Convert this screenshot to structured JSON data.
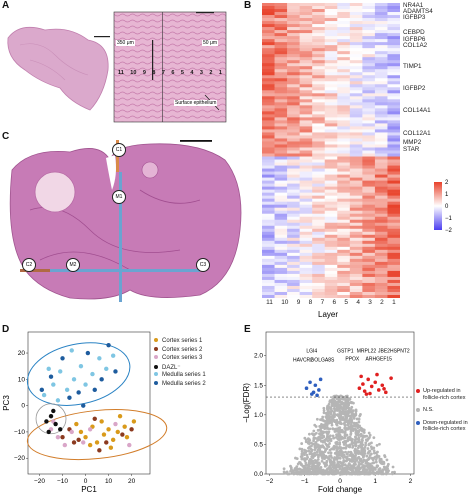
{
  "panels": {
    "a": "A",
    "b": "B",
    "c": "C",
    "d": "D",
    "e": "E"
  },
  "panel_a": {
    "scale_350": "350 μm",
    "scale_50": "50 μm",
    "layer_numbers": [
      "11",
      "10",
      "9",
      "8",
      "7",
      "6",
      "5",
      "4",
      "3",
      "2",
      "1"
    ],
    "surface_label": "Surface epithelium"
  },
  "panel_b": {
    "genes": [
      "NR4A1",
      "ADAMTS4",
      "IGFBP3",
      "CEBPD",
      "IGFBP6",
      "COL1A2",
      "TIMP1",
      "IGFBP2",
      "COL14A1",
      "COL12A1",
      "MMP2",
      "STAR"
    ],
    "x_ticks": [
      "11",
      "10",
      "9",
      "8",
      "7",
      "6",
      "5",
      "4",
      "3",
      "2",
      "1"
    ],
    "x_label": "Layer",
    "legend_ticks": [
      "2",
      "1",
      "0",
      "−1",
      "−2"
    ],
    "colors": {
      "high": "#e8412a",
      "mid": "#ffffff",
      "low": "#4b3df0"
    }
  },
  "panel_c": {
    "markers": [
      "C1",
      "M1",
      "M2",
      "C2",
      "C3"
    ]
  },
  "chart_data": [
    {
      "type": "scatter",
      "xlabel": "PC1",
      "ylabel": "PC3",
      "xlim": [
        -25,
        28
      ],
      "ylim": [
        -26,
        28
      ],
      "x_ticks": [
        "−20",
        "−10",
        "0",
        "10",
        "20"
      ],
      "y_ticks": [
        "20",
        "10",
        "0",
        "−10",
        "−20"
      ],
      "legend_placement": "right",
      "series": [
        {
          "name": "Cortex series 1",
          "color": "#d99a1a",
          "points": [
            [
              -2,
              -10
            ],
            [
              0,
              -12
            ],
            [
              3,
              -8
            ],
            [
              5,
              -14
            ],
            [
              8,
              -11
            ],
            [
              10,
              -9
            ],
            [
              12,
              -13
            ],
            [
              14,
              -10
            ],
            [
              17,
              -8
            ],
            [
              18,
              -12
            ],
            [
              21,
              -6
            ],
            [
              -4,
              -7
            ],
            [
              7,
              -6
            ],
            [
              2,
              -15
            ],
            [
              11,
              -16
            ],
            [
              15,
              -4
            ]
          ]
        },
        {
          "name": "Cortex series 2",
          "color": "#8b3a1f",
          "points": [
            [
              -10,
              -12
            ],
            [
              -7,
              -9
            ],
            [
              -5,
              -14
            ],
            [
              4,
              -5
            ],
            [
              9,
              -14
            ],
            [
              16,
              -11
            ],
            [
              20,
              -9
            ],
            [
              6,
              -17
            ],
            [
              -3,
              -13
            ]
          ]
        },
        {
          "name": "Cortex series 3",
          "color": "#d9a6c8",
          "points": [
            [
              -15,
              -9
            ],
            [
              -12,
              -12
            ],
            [
              -9,
              -15
            ],
            [
              -6,
              -10
            ],
            [
              -1,
              -14
            ],
            [
              2,
              -9
            ],
            [
              13,
              -7
            ],
            [
              19,
              -15
            ],
            [
              -14,
              -6
            ]
          ]
        },
        {
          "name": "DAZL⁻",
          "color": "#111111",
          "points": [
            [
              -17,
              -6
            ],
            [
              -15,
              -4
            ],
            [
              -13,
              -7
            ],
            [
              -16,
              -10
            ],
            [
              -14,
              -2
            ],
            [
              -11,
              -9
            ]
          ]
        },
        {
          "name": "Medulla series 1",
          "color": "#7fc6e3",
          "points": [
            [
              -18,
              4
            ],
            [
              -14,
              8
            ],
            [
              -11,
              13
            ],
            [
              -8,
              6
            ],
            [
              -5,
              10
            ],
            [
              -2,
              15
            ],
            [
              0,
              8
            ],
            [
              3,
              12
            ],
            [
              6,
              18
            ],
            [
              9,
              14
            ],
            [
              -16,
              14
            ],
            [
              -12,
              2
            ],
            [
              -6,
              21
            ],
            [
              12,
              19
            ]
          ]
        },
        {
          "name": "Medulla series 2",
          "color": "#1e5c9e",
          "points": [
            [
              -15,
              11
            ],
            [
              -10,
              18
            ],
            [
              -7,
              3
            ],
            [
              -3,
              5
            ],
            [
              1,
              20
            ],
            [
              4,
              6
            ],
            [
              7,
              10
            ],
            [
              10,
              23
            ],
            [
              13,
              13
            ],
            [
              -19,
              6
            ],
            [
              -1,
              0
            ]
          ]
        }
      ]
    },
    {
      "type": "scatter",
      "xlabel": "Fold change",
      "ylabel": "−Log(FDR)",
      "xlim": [
        -2.1,
        2.1
      ],
      "ylim": [
        0,
        2.4
      ],
      "x_ticks": [
        "−2",
        "−1",
        "0",
        "1",
        "2"
      ],
      "y_ticks": [
        "2.0",
        "1.5",
        "1.0",
        "0.5",
        "0.0"
      ],
      "threshold": 1.3,
      "labels": [
        "LGI4",
        "HAVCR2",
        "GOLGA8S",
        "GSTP1",
        "MRPL22",
        "PPOX",
        "JBE2H",
        "SPNT2",
        "ARHGEF15"
      ],
      "legend": [
        {
          "name": "Up-regulated in follicle-rich cortex",
          "color": "#e02020"
        },
        {
          "name": "N.S.",
          "color": "#b5b5b5"
        },
        {
          "name": "Down-regulated in follicle-rich cortex",
          "color": "#2f5fbf"
        }
      ],
      "up_points": [
        [
          0.55,
          1.45
        ],
        [
          0.65,
          1.52
        ],
        [
          0.7,
          1.4
        ],
        [
          0.8,
          1.6
        ],
        [
          0.9,
          1.48
        ],
        [
          1.0,
          1.55
        ],
        [
          1.1,
          1.42
        ],
        [
          1.2,
          1.5
        ],
        [
          1.3,
          1.38
        ],
        [
          1.45,
          1.62
        ],
        [
          0.6,
          1.65
        ],
        [
          0.85,
          1.36
        ],
        [
          1.05,
          1.68
        ],
        [
          1.25,
          1.44
        ],
        [
          0.75,
          1.35
        ]
      ],
      "down_points": [
        [
          -0.95,
          1.45
        ],
        [
          -0.85,
          1.55
        ],
        [
          -0.75,
          1.38
        ],
        [
          -0.7,
          1.5
        ],
        [
          -0.6,
          1.42
        ],
        [
          -0.55,
          1.6
        ],
        [
          -0.8,
          1.35
        ],
        [
          -0.65,
          1.33
        ]
      ]
    }
  ]
}
